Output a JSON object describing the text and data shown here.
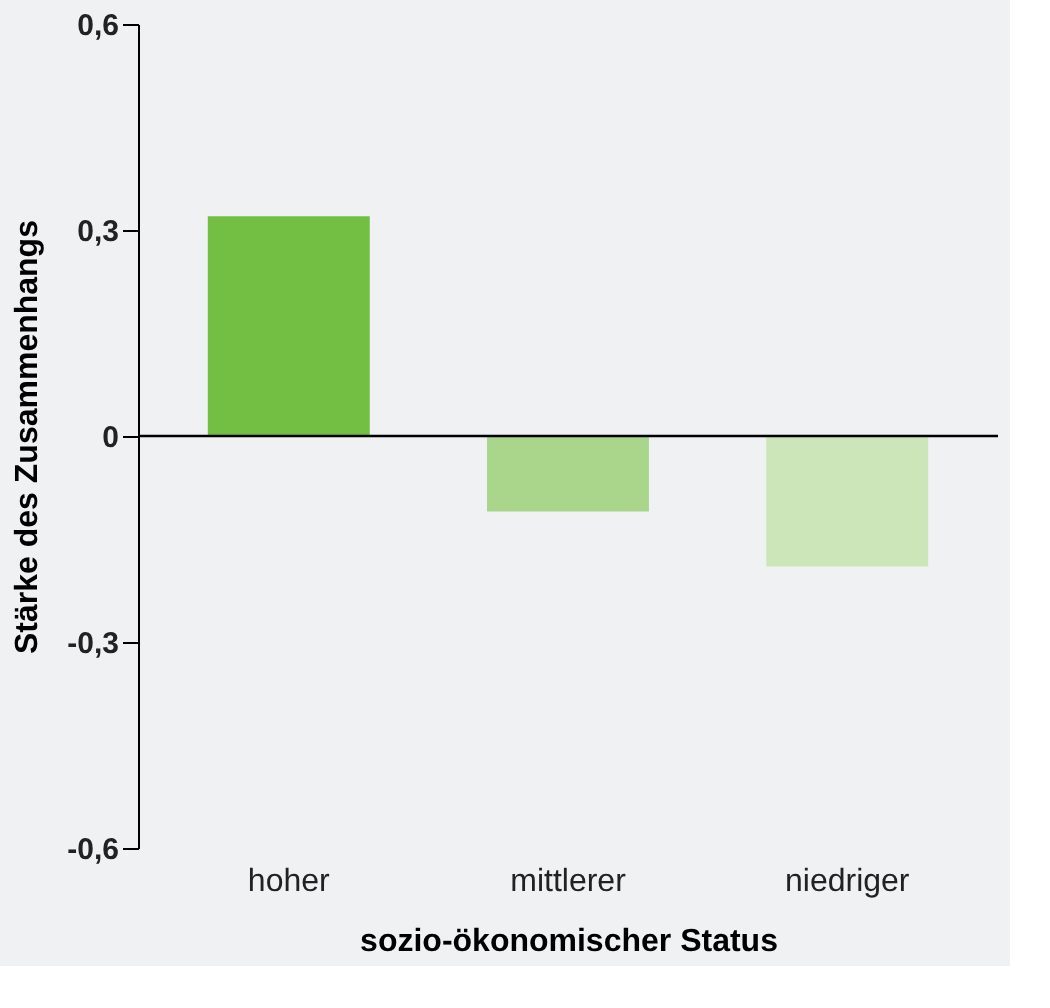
{
  "chart_data": {
    "type": "bar",
    "xlabel": "sozio-ökonomischer Status",
    "ylabel": "Stärke des Zusammenhangs",
    "categories": [
      "hoher",
      "mittlerer",
      "niedriger"
    ],
    "values": [
      0.32,
      -0.11,
      -0.19
    ],
    "colors": [
      "#72bf44",
      "#a9d68b",
      "#cde6b9"
    ],
    "ylim": [
      -0.6,
      0.6
    ],
    "yticks": [
      {
        "value": -0.6,
        "label": "-0,6"
      },
      {
        "value": -0.3,
        "label": "-0,3"
      },
      {
        "value": 0,
        "label": "0"
      },
      {
        "value": 0.3,
        "label": "0,3"
      },
      {
        "value": 0.6,
        "label": "0,6"
      }
    ],
    "ref_lines": [
      {
        "axis": "y",
        "value": 0,
        "color": "#000000"
      }
    ],
    "grid": false
  }
}
